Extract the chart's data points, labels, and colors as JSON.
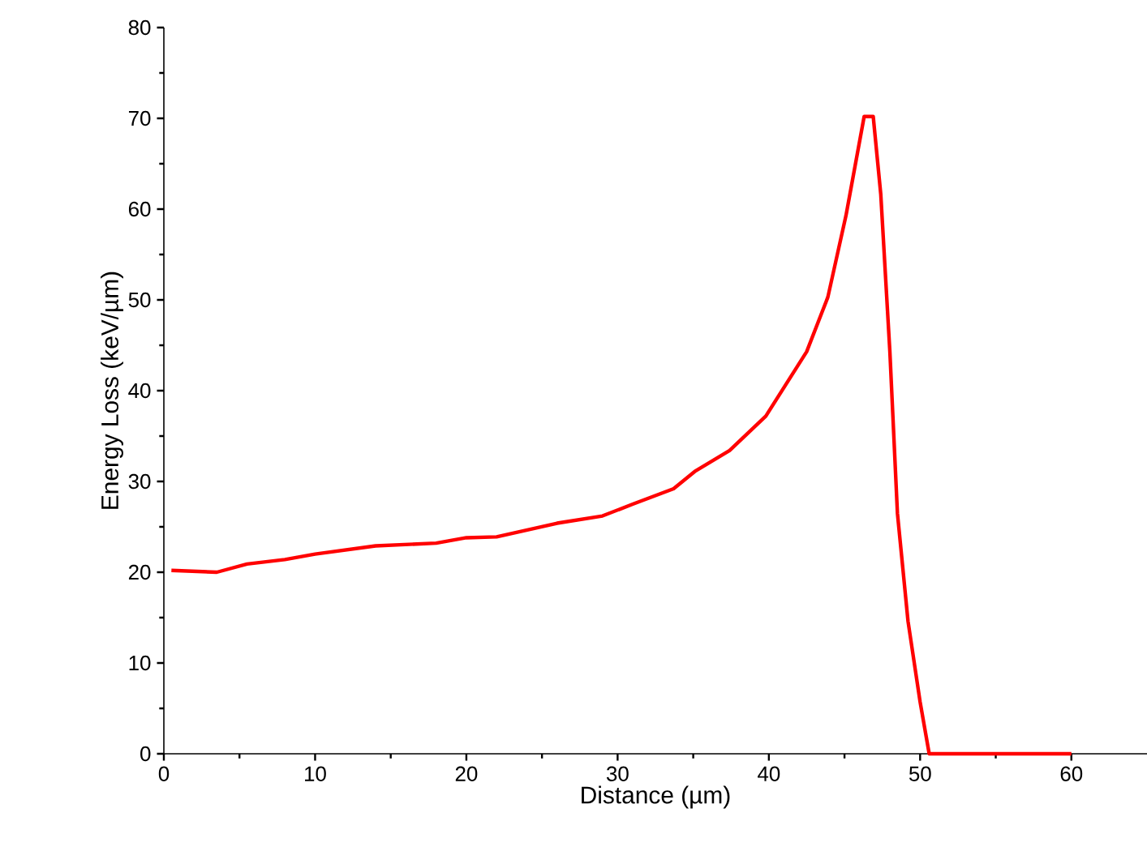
{
  "chart_data": {
    "type": "line",
    "xlabel": "Distance (µm)",
    "ylabel": "Energy Loss (keV/µm)",
    "xlim": [
      0,
      65
    ],
    "ylim": [
      0,
      80
    ],
    "xticks": [
      0,
      10,
      20,
      30,
      40,
      50,
      60
    ],
    "yticks": [
      0,
      10,
      20,
      30,
      40,
      50,
      60,
      70,
      80
    ],
    "grid": false,
    "series": [
      {
        "color": "#ff0000",
        "x": [
          0.5,
          3.5,
          5.5,
          8,
          10,
          14,
          18,
          20,
          22,
          26,
          29,
          31,
          33.7,
          35.1,
          37.4,
          39.8,
          42.5,
          43.9,
          45.1,
          46.3,
          46.9,
          47.4,
          48,
          48.5,
          49.2,
          50,
          50.6,
          55,
          60
        ],
        "values": [
          20.2,
          20.0,
          20.9,
          21.4,
          22,
          22.9,
          23.2,
          23.8,
          23.9,
          25.4,
          26.2,
          27.5,
          29.2,
          31.1,
          33.4,
          37.2,
          44.3,
          50.3,
          59.3,
          70.2,
          70.2,
          61.6,
          44.3,
          26.5,
          14.6,
          5.7,
          0,
          0,
          0
        ]
      }
    ]
  }
}
